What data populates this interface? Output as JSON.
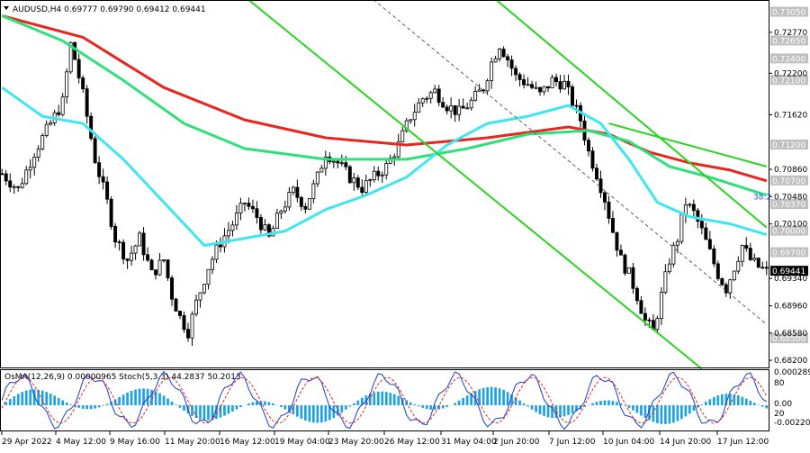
{
  "header": {
    "symbol": "AUDUSD",
    "timeframe": "H4",
    "ohlc": "0.69777 0.69790 0.69412 0.69441"
  },
  "chart_data": {
    "type": "candlestick",
    "ylim": [
      0.681,
      0.7322
    ],
    "price_ticks": [
      "0.72770",
      "0.72200",
      "0.71620",
      "0.70860",
      "0.70480",
      "0.70100",
      "0.69340",
      "0.68960",
      "0.68580",
      "0.68200"
    ],
    "level_labels": [
      {
        "text": "0.73050",
        "price": 0.7305,
        "color": "#c0c0c0"
      },
      {
        "text": "0.72650",
        "price": 0.7265,
        "color": "#c0c0c0"
      },
      {
        "text": "0.72400",
        "price": 0.724,
        "color": "#c0c0c0"
      },
      {
        "text": "0.72100",
        "price": 0.721,
        "color": "#c0c0c0"
      },
      {
        "text": "0.71200",
        "price": 0.712,
        "color": "#c0c0c0"
      },
      {
        "text": "0.70700",
        "price": 0.707,
        "color": "#c0c0c0"
      },
      {
        "text": "0.70370",
        "price": 0.7037,
        "color": "#c0c0c0"
      },
      {
        "text": "0.70000",
        "price": 0.7,
        "color": "#c0c0c0"
      },
      {
        "text": "0.69700",
        "price": 0.697,
        "color": "#c0c0c0"
      },
      {
        "text": "0.68500",
        "price": 0.685,
        "color": "#c0c0c0"
      }
    ],
    "current_price": {
      "text": "0.69441",
      "price": 0.69441
    },
    "fib_label": "38.2",
    "x_labels": [
      "29 Apr 2022",
      "4 May 12:00",
      "9 May 16:00",
      "11 May 20:00",
      "16 May 12:00",
      "19 May 04:00",
      "23 May 20:00",
      "26 May 12:00",
      "31 May 04:00",
      "2 Jun 20:00",
      "7 Jun 12:00",
      "10 Jun 04:00",
      "14 Jun 20:00",
      "17 Jun 12:00"
    ],
    "close_path": [
      [
        0,
        0.708
      ],
      [
        4,
        0.7058
      ],
      [
        8,
        0.711
      ],
      [
        12,
        0.715
      ],
      [
        15,
        0.718
      ],
      [
        17,
        0.726
      ],
      [
        18,
        0.724
      ],
      [
        20,
        0.719
      ],
      [
        23,
        0.71
      ],
      [
        26,
        0.704
      ],
      [
        28,
        0.699
      ],
      [
        31,
        0.696
      ],
      [
        34,
        0.699
      ],
      [
        37,
        0.694
      ],
      [
        40,
        0.696
      ],
      [
        42,
        0.691
      ],
      [
        44,
        0.688
      ],
      [
        46,
        0.686
      ],
      [
        48,
        0.69
      ],
      [
        51,
        0.695
      ],
      [
        54,
        0.6985
      ],
      [
        57,
        0.701
      ],
      [
        60,
        0.704
      ],
      [
        63,
        0.702
      ],
      [
        66,
        0.699
      ],
      [
        69,
        0.703
      ],
      [
        72,
        0.7055
      ],
      [
        75,
        0.7035
      ],
      [
        78,
        0.7075
      ],
      [
        80,
        0.711
      ],
      [
        83,
        0.7095
      ],
      [
        86,
        0.7075
      ],
      [
        89,
        0.706
      ],
      [
        92,
        0.7075
      ],
      [
        95,
        0.709
      ],
      [
        98,
        0.712
      ],
      [
        101,
        0.716
      ],
      [
        104,
        0.7185
      ],
      [
        107,
        0.7195
      ],
      [
        110,
        0.7175
      ],
      [
        113,
        0.7165
      ],
      [
        116,
        0.718
      ],
      [
        119,
        0.72
      ],
      [
        121,
        0.7235
      ],
      [
        123,
        0.726
      ],
      [
        125,
        0.724
      ],
      [
        127,
        0.7215
      ],
      [
        130,
        0.7205
      ],
      [
        133,
        0.719
      ],
      [
        136,
        0.721
      ],
      [
        139,
        0.7205
      ],
      [
        141,
        0.718
      ],
      [
        143,
        0.7155
      ],
      [
        145,
        0.711
      ],
      [
        147,
        0.708
      ],
      [
        149,
        0.7045
      ],
      [
        151,
        0.7
      ],
      [
        153,
        0.696
      ],
      [
        155,
        0.694
      ],
      [
        157,
        0.691
      ],
      [
        159,
        0.6875
      ],
      [
        161,
        0.686
      ],
      [
        163,
        0.691
      ],
      [
        165,
        0.696
      ],
      [
        167,
        0.699
      ],
      [
        169,
        0.704
      ],
      [
        171,
        0.7025
      ],
      [
        173,
        0.7
      ],
      [
        175,
        0.697
      ],
      [
        177,
        0.694
      ],
      [
        179,
        0.692
      ],
      [
        181,
        0.695
      ],
      [
        183,
        0.698
      ],
      [
        185,
        0.696
      ],
      [
        187,
        0.695
      ],
      [
        189,
        0.6944
      ]
    ],
    "series": [
      {
        "name": "",
        "color": "#e8251f",
        "points": [
          [
            0,
            0.73
          ],
          [
            20,
            0.727
          ],
          [
            40,
            0.72
          ],
          [
            60,
            0.7155
          ],
          [
            80,
            0.713
          ],
          [
            100,
            0.712
          ],
          [
            120,
            0.713
          ],
          [
            140,
            0.7145
          ],
          [
            150,
            0.7135
          ],
          [
            160,
            0.711
          ],
          [
            170,
            0.7095
          ],
          [
            180,
            0.7085
          ],
          [
            189,
            0.707
          ]
        ]
      },
      {
        "name": "",
        "color": "#2ee07a",
        "points": [
          [
            0,
            0.73
          ],
          [
            15,
            0.7265
          ],
          [
            30,
            0.721
          ],
          [
            45,
            0.715
          ],
          [
            60,
            0.7115
          ],
          [
            80,
            0.71
          ],
          [
            100,
            0.71
          ],
          [
            115,
            0.7115
          ],
          [
            130,
            0.7135
          ],
          [
            145,
            0.714
          ],
          [
            155,
            0.7125
          ],
          [
            165,
            0.709
          ],
          [
            175,
            0.7075
          ],
          [
            189,
            0.705
          ]
        ]
      },
      {
        "name": "",
        "color": "#3fe6f0",
        "points": [
          [
            0,
            0.72
          ],
          [
            10,
            0.716
          ],
          [
            20,
            0.715
          ],
          [
            30,
            0.71
          ],
          [
            40,
            0.704
          ],
          [
            50,
            0.698
          ],
          [
            60,
            0.699
          ],
          [
            70,
            0.7
          ],
          [
            80,
            0.703
          ],
          [
            90,
            0.705
          ],
          [
            100,
            0.7075
          ],
          [
            110,
            0.712
          ],
          [
            120,
            0.715
          ],
          [
            130,
            0.716
          ],
          [
            140,
            0.7175
          ],
          [
            148,
            0.715
          ],
          [
            155,
            0.71
          ],
          [
            162,
            0.704
          ],
          [
            170,
            0.702
          ],
          [
            180,
            0.701
          ],
          [
            189,
            0.6995
          ]
        ]
      }
    ],
    "channels": [
      {
        "color": "#2ad41e",
        "style": "solid",
        "points": [
          [
            56,
            0.7345
          ],
          [
            173,
            0.6808
          ]
        ]
      },
      {
        "color": "#2ad41e",
        "style": "solid",
        "points": [
          [
            118,
            0.7342
          ],
          [
            189,
            0.7005
          ]
        ]
      },
      {
        "color": "#2ad41e",
        "style": "solid",
        "points": [
          [
            150,
            0.715
          ],
          [
            189,
            0.709
          ]
        ]
      },
      {
        "color": "#606060",
        "style": "dashed",
        "points": [
          [
            87,
            0.7345
          ],
          [
            189,
            0.687
          ]
        ]
      }
    ],
    "osma_panel": {
      "label": "OsMA(12,26,9) 0.00000965  Stoch(5,3,3) 44.2837 50.2013",
      "right_labels": [
        "0.000289",
        "80",
        "0.00",
        "20",
        "-0.002204"
      ]
    }
  }
}
